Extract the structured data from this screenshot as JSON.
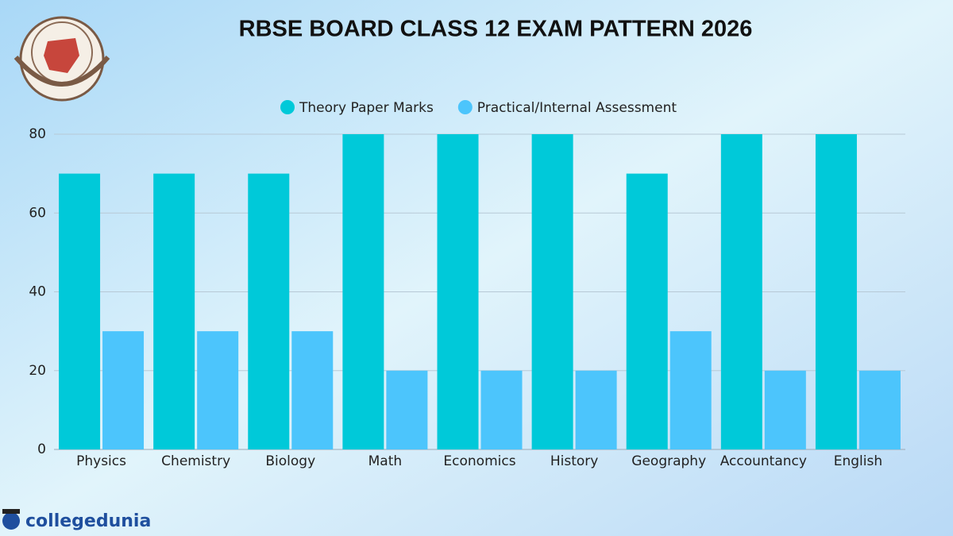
{
  "chart_data": {
    "type": "bar",
    "title": "RBSE BOARD CLASS 12 EXAM PATTERN 2026",
    "categories": [
      "Physics",
      "Chemistry",
      "Biology",
      "Math",
      "Economics",
      "History",
      "Geography",
      "Accountancy",
      "English"
    ],
    "series": [
      {
        "name": "Theory Paper Marks",
        "color": "#00c9d9",
        "values": [
          70,
          70,
          70,
          80,
          80,
          80,
          70,
          80,
          80
        ]
      },
      {
        "name": "Practical/Internal Assessment",
        "color": "#4cc5fc",
        "values": [
          30,
          30,
          30,
          20,
          20,
          20,
          30,
          20,
          20
        ]
      }
    ],
    "ylim": [
      0,
      80
    ],
    "yticks": [
      0,
      20,
      40,
      60,
      80
    ],
    "grid": true,
    "legend": "top"
  },
  "brand": "collegedunia"
}
